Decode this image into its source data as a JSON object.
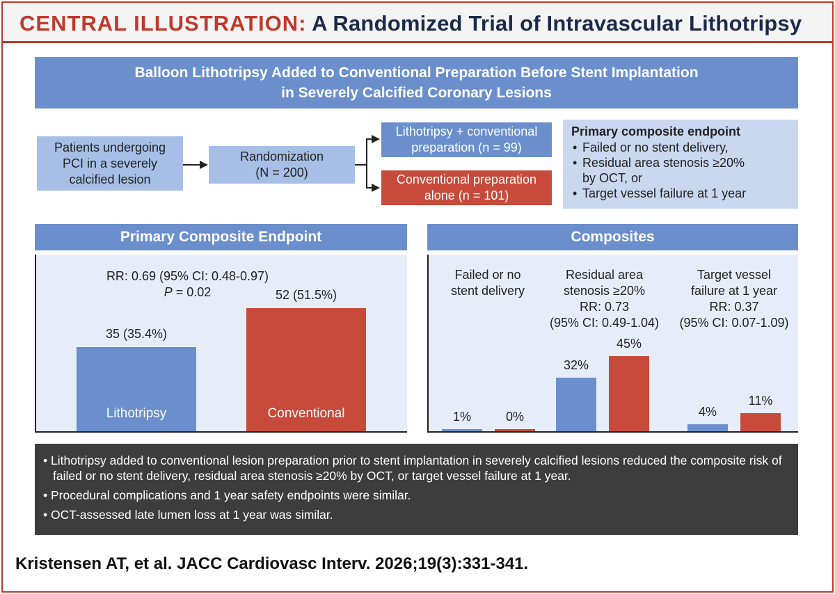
{
  "title": {
    "lead": "CENTRAL ILLUSTRATION:",
    "rest": "A Randomized Trial of Intravascular Lithotripsy"
  },
  "banner": {
    "line1": "Balloon Lithotripsy Added to Conventional Preparation Before Stent Implantation",
    "line2": "in Severely Calcified Coronary Lesions"
  },
  "flow": {
    "patients": [
      "Patients undergoing",
      "PCI in a severely",
      "calcified lesion"
    ],
    "randomization": [
      "Randomization",
      "(N = 200)"
    ],
    "arm_litho": [
      "Lithotripsy + conventional",
      "preparation (n = 99)"
    ],
    "arm_conv": [
      "Conventional preparation",
      "alone (n = 101)"
    ]
  },
  "endpoint_box": {
    "heading": "Primary composite endpoint",
    "items": [
      "Failed or no stent delivery,",
      "Residual area stenosis ≥20%",
      "by OCT, or",
      "Target vessel failure at 1 year"
    ]
  },
  "colors": {
    "lithotripsy": "#6a8fcc",
    "conventional": "#c74a3b",
    "accent": "#c0392b"
  },
  "chart_data": [
    {
      "type": "bar",
      "title": "Primary Composite Endpoint",
      "categories": [
        "Lithotripsy",
        "Conventional"
      ],
      "values": [
        35.4,
        51.5
      ],
      "value_labels": [
        "35 (35.4%)",
        "52 (51.5%)"
      ],
      "ylim": [
        0,
        70
      ],
      "annotation": {
        "rr": "RR: 0.69 (95% CI: 0.48-0.97)",
        "p_italic": "P",
        "p_rest": " = 0.02"
      }
    },
    {
      "type": "bar",
      "title": "Composites",
      "categories": [
        "Failed or no stent delivery",
        "Residual area stenosis ≥20%",
        "Target vessel failure at 1 year"
      ],
      "category_label_lines": [
        [
          "Failed or no",
          "stent delivery"
        ],
        [
          "Residual area",
          "stenosis ≥20%"
        ],
        [
          "Target vessel",
          "failure at 1 year"
        ]
      ],
      "rr_lines": [
        [],
        [
          "RR: 0.73",
          "(95% CI: 0.49-1.04)"
        ],
        [
          "RR: 0.37",
          "(95% CI: 0.07-1.09)"
        ]
      ],
      "series": [
        {
          "values": [
            1,
            32,
            4
          ],
          "labels": [
            "1%",
            "32%",
            "4%"
          ]
        },
        {
          "values": [
            0,
            45,
            11
          ],
          "labels": [
            "0%",
            "45%",
            "11%"
          ]
        }
      ],
      "ylim": [
        0,
        100
      ]
    }
  ],
  "bullets": [
    "• Lithotripsy added to conventional lesion preparation prior to stent implantation in severely calcified lesions reduced the composite risk of failed or no stent delivery, residual area stenosis ≥20% by OCT, or target vessel failure at 1 year.",
    "• Procedural complications and 1 year safety endpoints were similar.",
    "• OCT-assessed late lumen loss at 1 year was similar."
  ],
  "citation": "Kristensen AT, et al. JACC Cardiovasc Interv. 2026;19(3):331-341."
}
